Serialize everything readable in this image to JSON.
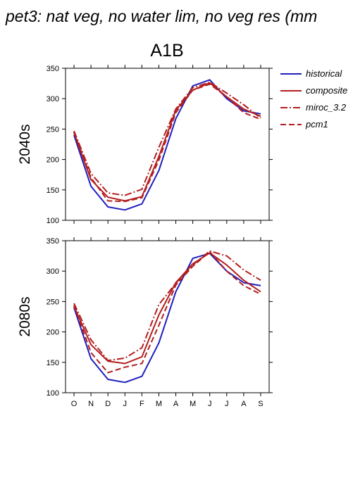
{
  "title": "pet3: nat veg, no water lim, no veg res (mm",
  "scenario": "A1B",
  "legend": [
    {
      "name": "historical",
      "color": "#1f1fbf",
      "dash": "solid"
    },
    {
      "name": "composite",
      "color": "#b41e1e",
      "dash": "solid"
    },
    {
      "name": "miroc_3.2",
      "color": "#b41e1e",
      "dash": "dashdot"
    },
    {
      "name": "pcm1",
      "color": "#b41e1e",
      "dash": "dashed"
    }
  ],
  "chart_data": [
    {
      "type": "line",
      "row_label": "2040s",
      "categories": [
        "O",
        "N",
        "D",
        "J",
        "F",
        "M",
        "A",
        "M",
        "J",
        "J",
        "A",
        "S"
      ],
      "ylim": [
        100,
        350
      ],
      "yticks": [
        "100",
        "150",
        "200",
        "250",
        "300",
        "350"
      ],
      "series": [
        {
          "name": "historical",
          "values": [
            240,
            156,
            122,
            117,
            127,
            182,
            267,
            321,
            331,
            300,
            280,
            275
          ]
        },
        {
          "name": "composite",
          "values": [
            244,
            167,
            138,
            132,
            139,
            205,
            281,
            314,
            326,
            303,
            283,
            271
          ]
        },
        {
          "name": "miroc_3.2",
          "values": [
            247,
            177,
            145,
            141,
            151,
            220,
            283,
            318,
            327,
            309,
            290,
            268
          ]
        },
        {
          "name": "pcm1",
          "values": [
            245,
            170,
            132,
            131,
            137,
            199,
            277,
            314,
            324,
            303,
            277,
            266
          ]
        }
      ]
    },
    {
      "type": "line",
      "row_label": "2080s",
      "categories": [
        "O",
        "N",
        "D",
        "J",
        "F",
        "M",
        "A",
        "M",
        "J",
        "J",
        "A",
        "S"
      ],
      "ylim": [
        100,
        350
      ],
      "yticks": [
        "100",
        "150",
        "200",
        "250",
        "300",
        "350"
      ],
      "series": [
        {
          "name": "historical",
          "values": [
            240,
            156,
            122,
            117,
            127,
            182,
            266,
            321,
            329,
            300,
            281,
            276
          ]
        },
        {
          "name": "composite",
          "values": [
            242,
            179,
            152,
            148,
            159,
            228,
            281,
            312,
            330,
            310,
            285,
            266
          ]
        },
        {
          "name": "miroc_3.2",
          "values": [
            247,
            187,
            153,
            157,
            174,
            245,
            280,
            310,
            333,
            325,
            302,
            285
          ]
        },
        {
          "name": "pcm1",
          "values": [
            244,
            166,
            133,
            142,
            148,
            211,
            277,
            308,
            332,
            300,
            276,
            262
          ]
        }
      ]
    }
  ]
}
